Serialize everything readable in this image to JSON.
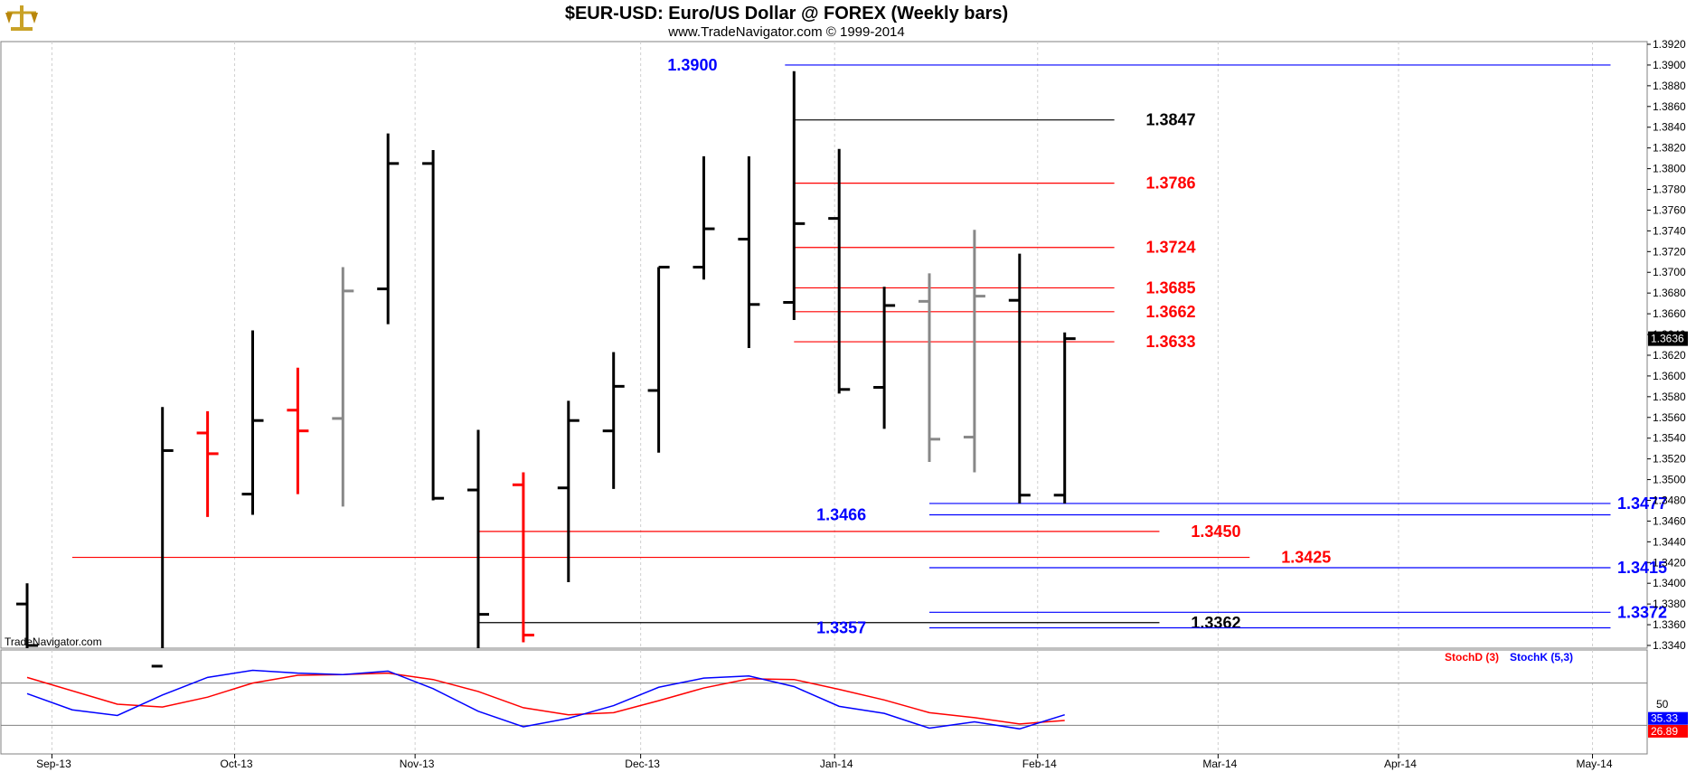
{
  "header": {
    "title": "$EUR-USD:  Euro/US Dollar @ FOREX  (Weekly bars)",
    "subtitle": "www.TradeNavigator.com © 1999-2014",
    "watermark": "TradeNavigator.com"
  },
  "colors": {
    "up": "#000000",
    "down": "#ff0000",
    "neutral": "#888888",
    "blue": "#0000ff",
    "red": "#ff0000",
    "black": "#000000",
    "stochD": "#ff0000",
    "stochK": "#0000ff"
  },
  "chart_data": {
    "type": "ohlc",
    "y_axis": {
      "min": 1.334,
      "max": 1.392,
      "step": 0.002,
      "tick_labels": [
        "1.3340",
        "1.3360",
        "1.3380",
        "1.3400",
        "1.3420",
        "1.3440",
        "1.3460",
        "1.3480",
        "1.3500",
        "1.3520",
        "1.3540",
        "1.3560",
        "1.3580",
        "1.3600",
        "1.3620",
        "1.3640",
        "1.3660",
        "1.3680",
        "1.3700",
        "1.3720",
        "1.3740",
        "1.3760",
        "1.3780",
        "1.3800",
        "1.3820",
        "1.3840",
        "1.3860",
        "1.3880",
        "1.3900",
        "1.3920"
      ]
    },
    "last_price": "1.3636",
    "x_axis": {
      "labels": [
        {
          "label": "Sep-13",
          "week": 0.55
        },
        {
          "label": "Oct-13",
          "week": 4.6
        },
        {
          "label": "Nov-13",
          "week": 8.6
        },
        {
          "label": "Dec-13",
          "week": 13.6
        },
        {
          "label": "Jan-14",
          "week": 17.9
        },
        {
          "label": "Feb-14",
          "week": 22.4
        },
        {
          "label": "Mar-14",
          "week": 26.4
        },
        {
          "label": "Apr-14",
          "week": 30.4
        },
        {
          "label": "May-14",
          "week": 34.7
        }
      ],
      "week_range": [
        0,
        36
      ]
    },
    "bars": [
      {
        "w": 0,
        "o": 1.338,
        "h": 1.34,
        "l": 1.332,
        "c": 1.334,
        "s": "up"
      },
      {
        "w": 3,
        "o": 1.332,
        "h": 1.357,
        "l": 1.332,
        "c": 1.3528,
        "s": "up"
      },
      {
        "w": 4,
        "o": 1.3545,
        "h": 1.3566,
        "l": 1.3464,
        "c": 1.3525,
        "s": "down"
      },
      {
        "w": 5,
        "o": 1.3486,
        "h": 1.3644,
        "l": 1.3466,
        "c": 1.3557,
        "s": "up"
      },
      {
        "w": 6,
        "o": 1.3567,
        "h": 1.3608,
        "l": 1.3486,
        "c": 1.3547,
        "s": "down"
      },
      {
        "w": 7,
        "o": 1.3559,
        "h": 1.3705,
        "l": 1.3474,
        "c": 1.3682,
        "s": "neutral"
      },
      {
        "w": 8,
        "o": 1.3684,
        "h": 1.3834,
        "l": 1.365,
        "c": 1.3805,
        "s": "up"
      },
      {
        "w": 9,
        "o": 1.3805,
        "h": 1.3818,
        "l": 1.348,
        "c": 1.3482,
        "s": "up"
      },
      {
        "w": 10,
        "o": 1.349,
        "h": 1.3548,
        "l": 1.332,
        "c": 1.337,
        "s": "up"
      },
      {
        "w": 11,
        "o": 1.3495,
        "h": 1.3507,
        "l": 1.3343,
        "c": 1.335,
        "s": "down"
      },
      {
        "w": 12,
        "o": 1.3492,
        "h": 1.3576,
        "l": 1.3401,
        "c": 1.3557,
        "s": "up"
      },
      {
        "w": 13,
        "o": 1.3547,
        "h": 1.3623,
        "l": 1.3491,
        "c": 1.359,
        "s": "up"
      },
      {
        "w": 14,
        "o": 1.3586,
        "h": 1.3705,
        "l": 1.3526,
        "c": 1.3705,
        "s": "up"
      },
      {
        "w": 15,
        "o": 1.3705,
        "h": 1.3812,
        "l": 1.3693,
        "c": 1.3742,
        "s": "up"
      },
      {
        "w": 16,
        "o": 1.3732,
        "h": 1.3812,
        "l": 1.3627,
        "c": 1.3669,
        "s": "up"
      },
      {
        "w": 17,
        "o": 1.3671,
        "h": 1.3894,
        "l": 1.3654,
        "c": 1.3747,
        "s": "up"
      },
      {
        "w": 18,
        "o": 1.3752,
        "h": 1.3819,
        "l": 1.3583,
        "c": 1.3587,
        "s": "up"
      },
      {
        "w": 19,
        "o": 1.3589,
        "h": 1.3686,
        "l": 1.3549,
        "c": 1.3668,
        "s": "up"
      },
      {
        "w": 20,
        "o": 1.3672,
        "h": 1.3699,
        "l": 1.3517,
        "c": 1.3539,
        "s": "neutral"
      },
      {
        "w": 21,
        "o": 1.3541,
        "h": 1.3741,
        "l": 1.3507,
        "c": 1.3677,
        "s": "neutral"
      },
      {
        "w": 22,
        "o": 1.3673,
        "h": 1.3718,
        "l": 1.3477,
        "c": 1.3485,
        "s": "up"
      },
      {
        "w": 23,
        "o": 1.3485,
        "h": 1.3642,
        "l": 1.3477,
        "c": 1.3636,
        "s": "up"
      }
    ],
    "levels": [
      {
        "label": "1.3900",
        "value": 1.39,
        "x1": 16.8,
        "x2": 35.1,
        "label_w": 15.3,
        "side": "left",
        "color": "blue"
      },
      {
        "label": "1.3847",
        "value": 1.3847,
        "x1": 17.0,
        "x2": 24.1,
        "label_w": 24.8,
        "side": "right",
        "color": "black"
      },
      {
        "label": "1.3786",
        "value": 1.3786,
        "x1": 17.0,
        "x2": 24.1,
        "label_w": 24.8,
        "side": "right",
        "color": "red"
      },
      {
        "label": "1.3724",
        "value": 1.3724,
        "x1": 17.0,
        "x2": 24.1,
        "label_w": 24.8,
        "side": "right",
        "color": "red"
      },
      {
        "label": "1.3685",
        "value": 1.3685,
        "x1": 17.0,
        "x2": 24.1,
        "label_w": 24.8,
        "side": "right",
        "color": "red"
      },
      {
        "label": "1.3662",
        "value": 1.3662,
        "x1": 17.0,
        "x2": 24.1,
        "label_w": 24.8,
        "side": "right",
        "color": "red"
      },
      {
        "label": "1.3633",
        "value": 1.3633,
        "x1": 17.0,
        "x2": 24.1,
        "label_w": 24.8,
        "side": "right",
        "color": "red"
      },
      {
        "label": "1.3477",
        "value": 1.3477,
        "x1": 20.0,
        "x2": 35.1,
        "label_w": 35.25,
        "side": "right",
        "color": "blue"
      },
      {
        "label": "1.3466",
        "value": 1.3466,
        "x1": 20.0,
        "x2": 35.1,
        "label_w": 18.6,
        "side": "left",
        "color": "blue"
      },
      {
        "label": "1.3450",
        "value": 1.345,
        "x1": 10.0,
        "x2": 25.1,
        "label_w": 25.8,
        "side": "right",
        "color": "red"
      },
      {
        "label": "1.3425",
        "value": 1.3425,
        "x1": 1.0,
        "x2": 27.1,
        "label_w": 27.8,
        "side": "right",
        "color": "red"
      },
      {
        "label": "1.3415",
        "value": 1.3415,
        "x1": 20.0,
        "x2": 35.1,
        "label_w": 35.25,
        "side": "right",
        "color": "blue"
      },
      {
        "label": "1.3372",
        "value": 1.3372,
        "x1": 20.0,
        "x2": 35.1,
        "label_w": 35.25,
        "side": "right",
        "color": "blue"
      },
      {
        "label": "1.3362",
        "value": 1.3362,
        "x1": 10.0,
        "x2": 25.1,
        "label_w": 25.8,
        "side": "right",
        "color": "black"
      },
      {
        "label": "1.3357",
        "value": 1.3357,
        "x1": 20.0,
        "x2": 35.1,
        "label_w": 18.6,
        "side": "left",
        "color": "blue"
      }
    ],
    "stochastic": {
      "y_range": [
        0,
        100
      ],
      "tick_labels": [
        "50"
      ],
      "legend": [
        "StochD (3)",
        "StochK (5,3)"
      ],
      "d_label": "26.89",
      "k_label": "35.33",
      "stochD": [
        {
          "w": 0,
          "v": 88
        },
        {
          "w": 2,
          "v": 50
        },
        {
          "w": 3,
          "v": 46
        },
        {
          "w": 4,
          "v": 60
        },
        {
          "w": 5,
          "v": 80
        },
        {
          "w": 6,
          "v": 91
        },
        {
          "w": 7,
          "v": 92
        },
        {
          "w": 8,
          "v": 94
        },
        {
          "w": 9,
          "v": 85
        },
        {
          "w": 10,
          "v": 68
        },
        {
          "w": 11,
          "v": 45
        },
        {
          "w": 12,
          "v": 35
        },
        {
          "w": 13,
          "v": 38
        },
        {
          "w": 14,
          "v": 55
        },
        {
          "w": 15,
          "v": 73
        },
        {
          "w": 16,
          "v": 86
        },
        {
          "w": 17,
          "v": 85
        },
        {
          "w": 18,
          "v": 71
        },
        {
          "w": 19,
          "v": 56
        },
        {
          "w": 20,
          "v": 38
        },
        {
          "w": 21,
          "v": 31
        },
        {
          "w": 22,
          "v": 22
        },
        {
          "w": 23,
          "v": 27
        }
      ],
      "stochK": [
        {
          "w": 0,
          "v": 65
        },
        {
          "w": 1,
          "v": 42
        },
        {
          "w": 2,
          "v": 34
        },
        {
          "w": 3,
          "v": 63
        },
        {
          "w": 4,
          "v": 88
        },
        {
          "w": 5,
          "v": 98
        },
        {
          "w": 6,
          "v": 94
        },
        {
          "w": 7,
          "v": 92
        },
        {
          "w": 8,
          "v": 97
        },
        {
          "w": 9,
          "v": 72
        },
        {
          "w": 10,
          "v": 40
        },
        {
          "w": 11,
          "v": 18
        },
        {
          "w": 12,
          "v": 30
        },
        {
          "w": 13,
          "v": 48
        },
        {
          "w": 14,
          "v": 74
        },
        {
          "w": 15,
          "v": 87
        },
        {
          "w": 16,
          "v": 90
        },
        {
          "w": 17,
          "v": 75
        },
        {
          "w": 18,
          "v": 47
        },
        {
          "w": 19,
          "v": 37
        },
        {
          "w": 20,
          "v": 16
        },
        {
          "w": 21,
          "v": 25
        },
        {
          "w": 22,
          "v": 15
        },
        {
          "w": 23,
          "v": 35
        }
      ]
    }
  }
}
